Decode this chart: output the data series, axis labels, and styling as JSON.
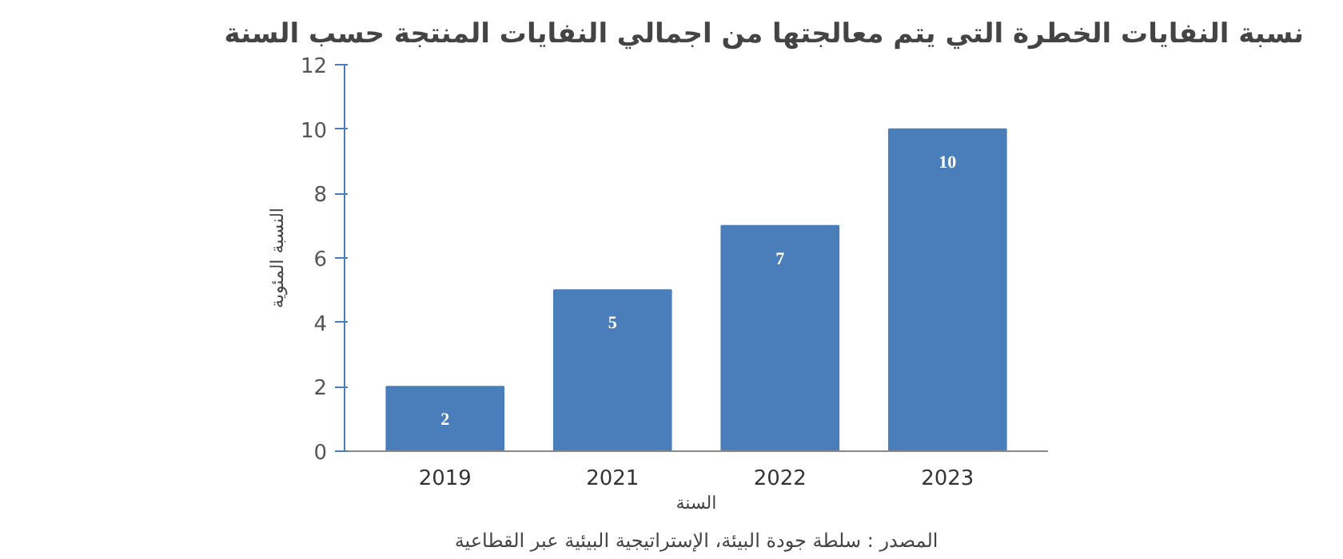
{
  "chart_data": {
    "type": "bar",
    "title": "نسبة النفايات الخطرة التي يتم معالجتها من اجمالي النفايات المنتجة حسب السنة",
    "xlabel": "السنة",
    "ylabel": "النسبة المئوية",
    "categories": [
      "2019",
      "2021",
      "2022",
      "2023"
    ],
    "values": [
      2,
      5,
      7,
      10
    ],
    "color": "#4a7ebb",
    "data_labels": true,
    "ylim": [
      0,
      12
    ],
    "yticks": [
      0,
      2,
      4,
      6,
      8,
      10,
      12
    ],
    "grid": false,
    "annotations": [
      "المصدر : سلطة جودة البيئة، الإستراتيجية البيئية عبر القطاعية"
    ]
  }
}
